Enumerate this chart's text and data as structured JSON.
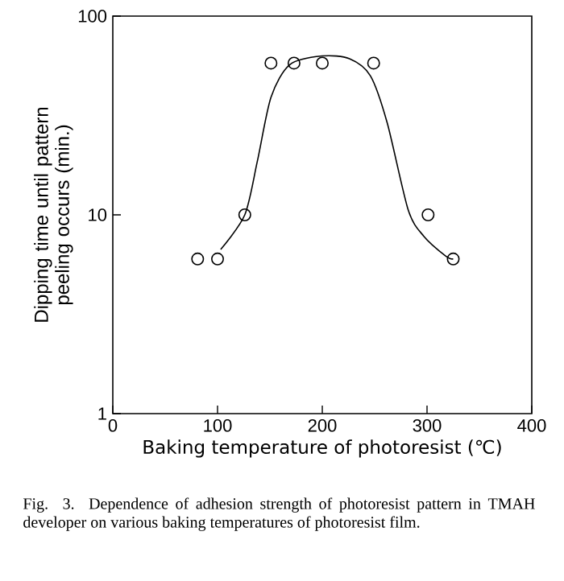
{
  "chart_data": {
    "type": "scatter",
    "xlabel": "Baking temperature of photoresist  (℃)",
    "ylabel": "Dipping time until pattern peeling occurs  (min.)",
    "log": "y",
    "xlim": [
      0,
      400
    ],
    "ylim": [
      1,
      100
    ],
    "xticks": [
      0,
      100,
      200,
      300,
      400
    ],
    "yticks": [
      1,
      10,
      100
    ],
    "grid": false,
    "annotations": [
      "Fig. 3.  Dependence of adhesion strength of photoresist pattern in TMAH developer on various baking temperatures of photoresist film."
    ],
    "series": [
      {
        "marker": "circle",
        "color": "#000000",
        "x": [
          81,
          100,
          126,
          151,
          173,
          200,
          249,
          301,
          325
        ],
        "values": [
          6,
          6,
          10,
          58,
          58,
          58,
          58,
          10,
          6
        ]
      },
      {
        "type": "line",
        "marker": "none",
        "color": "#000000",
        "x": [
          103,
          126,
          138,
          151,
          169,
          200,
          226,
          246,
          262,
          282,
          297,
          318,
          325
        ],
        "values": [
          6.7,
          10,
          18.6,
          39,
          57,
          63,
          61,
          50,
          29,
          10.6,
          7.8,
          6.2,
          6
        ]
      }
    ]
  }
}
